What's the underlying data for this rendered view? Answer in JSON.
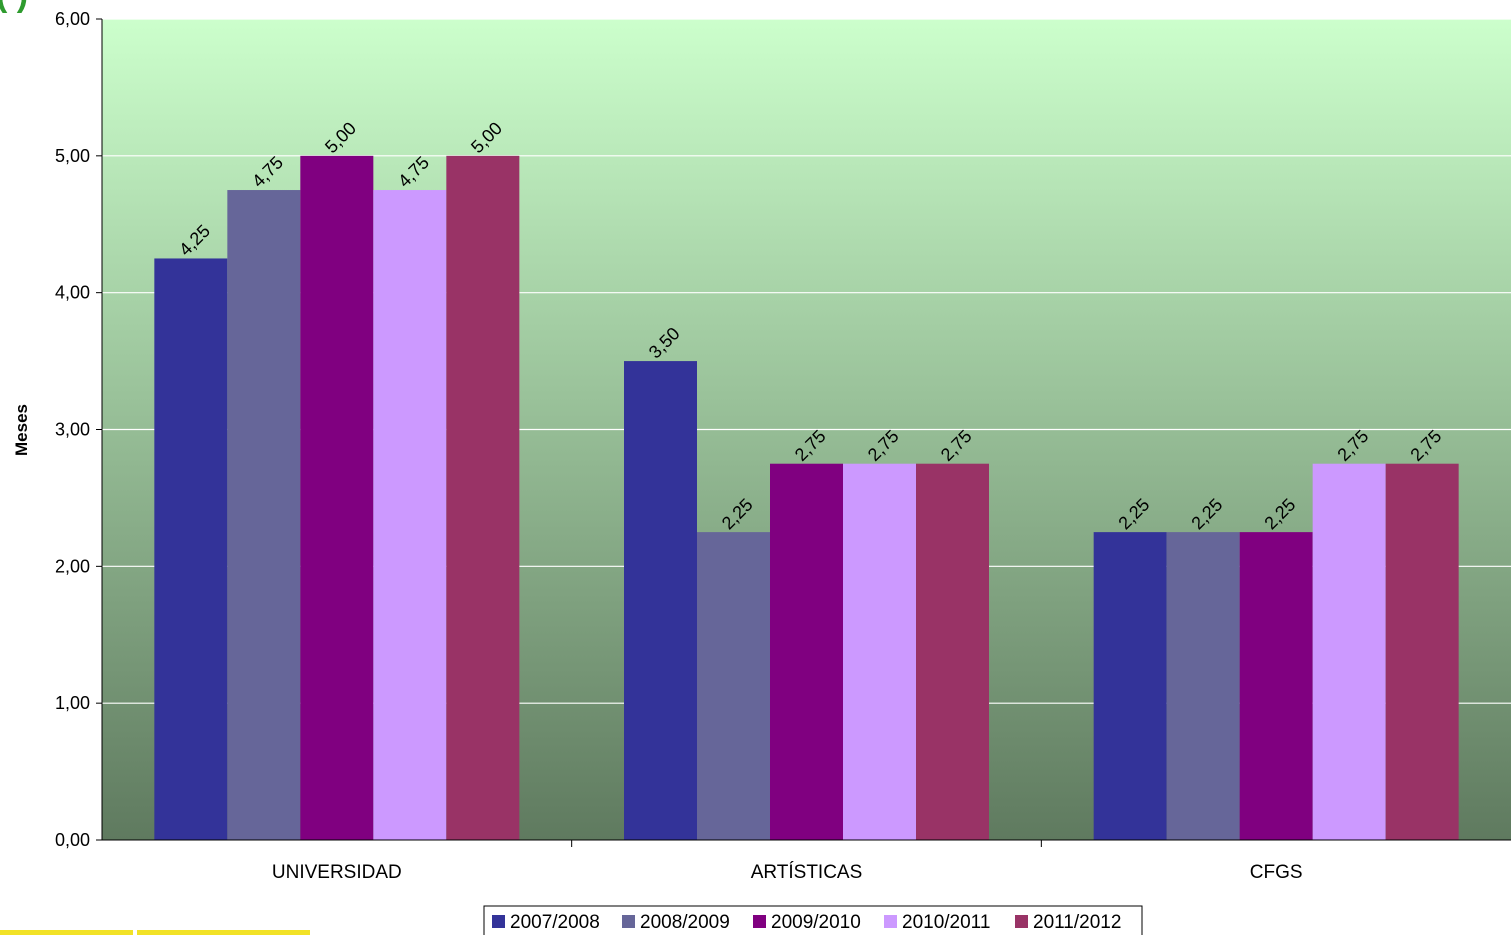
{
  "colors": {
    "plot_top": "#ccffcc",
    "plot_bottom": "#5f7a5f",
    "gridline": "#ffffff",
    "axis": "#000000",
    "title_fragment": "#2e9b2e",
    "accent_bar": "#f2e227"
  },
  "chart_data": {
    "type": "bar",
    "title_fragment": "(                              )",
    "xlabel": "",
    "ylabel": "Meses",
    "ylim": [
      0,
      6
    ],
    "yticks": [
      "0,00",
      "1,00",
      "2,00",
      "3,00",
      "4,00",
      "5,00",
      "6,00"
    ],
    "grid": true,
    "legend_position": "bottom",
    "categories": [
      "UNIVERSIDAD",
      "ARTÍSTICAS",
      "CFGS"
    ],
    "series": [
      {
        "name": "2007/2008",
        "color": "#333399",
        "values": [
          4.25,
          3.5,
          2.25
        ],
        "labels": [
          "4,25",
          "3,50",
          "2,25"
        ]
      },
      {
        "name": "2008/2009",
        "color": "#666699",
        "values": [
          4.75,
          2.25,
          2.25
        ],
        "labels": [
          "4,75",
          "2,25",
          "2,25"
        ]
      },
      {
        "name": "2009/2010",
        "color": "#800080",
        "values": [
          5.0,
          2.75,
          2.25
        ],
        "labels": [
          "5,00",
          "2,75",
          "2,25"
        ]
      },
      {
        "name": "2010/2011",
        "color": "#cc99ff",
        "values": [
          4.75,
          2.75,
          2.75
        ],
        "labels": [
          "4,75",
          "2,75",
          "2,75"
        ]
      },
      {
        "name": "2011/2012",
        "color": "#993366",
        "values": [
          5.0,
          2.75,
          2.75
        ],
        "labels": [
          "5,00",
          "2,75",
          "2,75"
        ]
      }
    ]
  }
}
